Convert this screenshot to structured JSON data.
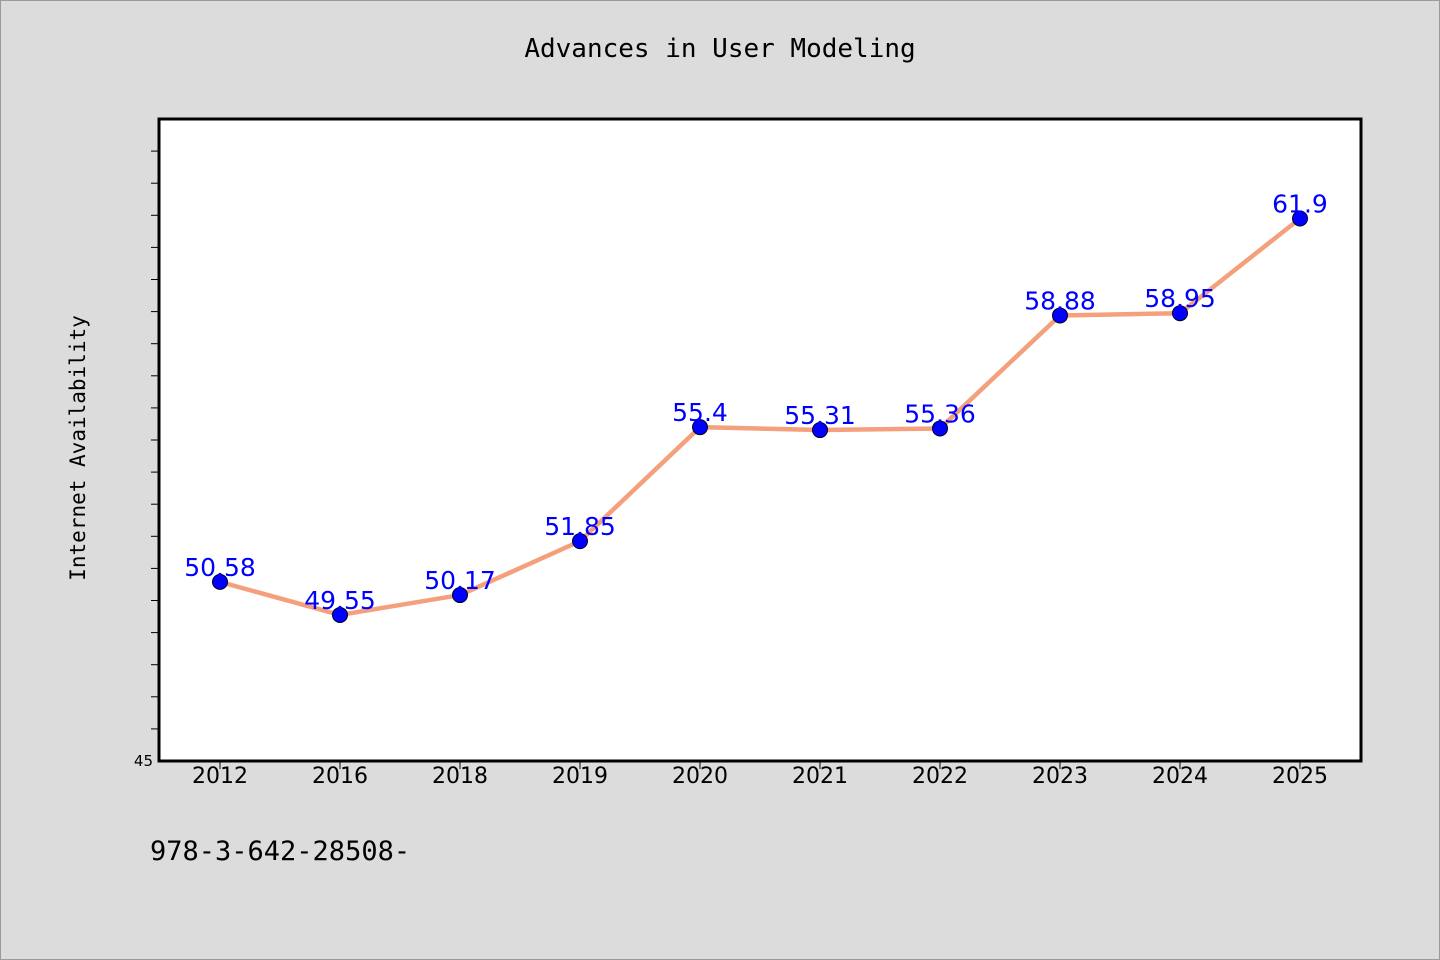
{
  "chart_data": {
    "type": "line",
    "title": "Advances in User Modeling",
    "xlabel": "",
    "ylabel": "Internet Availability",
    "categories": [
      "2012",
      "2016",
      "2018",
      "2019",
      "2020",
      "2021",
      "2022",
      "2023",
      "2024",
      "2025"
    ],
    "values": [
      50.58,
      49.55,
      50.17,
      51.85,
      55.4,
      55.31,
      55.36,
      58.88,
      58.95,
      61.9
    ],
    "data_labels": [
      "50.58",
      "49.55",
      "50.17",
      "51.85",
      "55.4",
      "55.31",
      "55.36",
      "58.88",
      "58.95",
      "61.9"
    ],
    "ylim": [
      45,
      65
    ],
    "y_tick_labels_visible": [
      "45"
    ],
    "grid": false,
    "legend": "none",
    "line_color": "#f4a07c",
    "marker_color": "#0000ff",
    "label_color": "#0000ff"
  },
  "footer_note": "978-3-642-28508-"
}
